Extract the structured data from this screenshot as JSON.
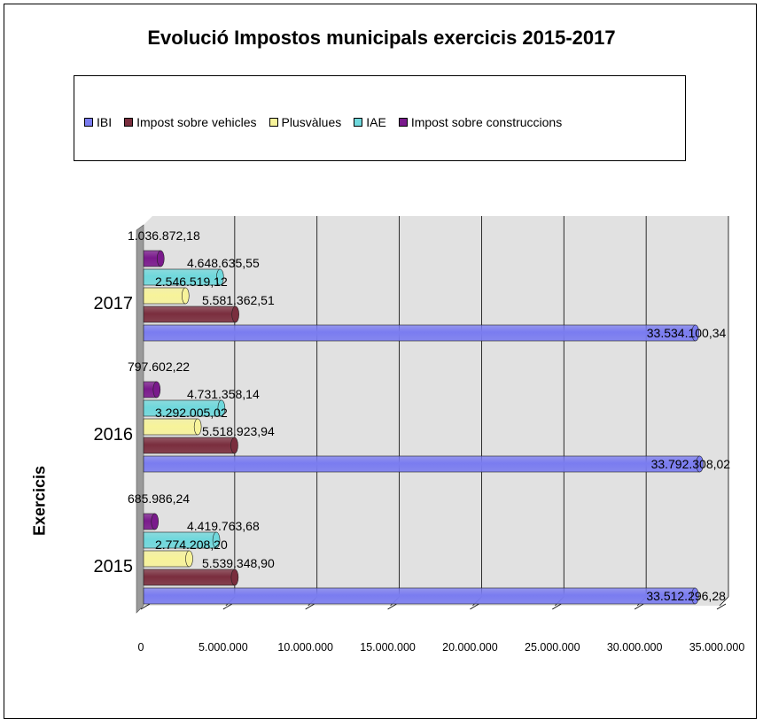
{
  "chart_data": {
    "type": "bar",
    "orientation": "horizontal",
    "title": "Evolució Impostos municipals exercicis 2015-2017",
    "ylabel": "Exercicis",
    "xlabel": "",
    "categories": [
      "2015",
      "2016",
      "2017"
    ],
    "series": [
      {
        "name": "IBI",
        "color": "#7a7cf0",
        "values": [
          33512296.28,
          33792308.02,
          33534100.34
        ],
        "labels": [
          "33.512.296,28",
          "33.792.308,02",
          "33.534.100,34"
        ]
      },
      {
        "name": "Impost sobre vehicles",
        "color": "#7a2e3e",
        "values": [
          5539348.9,
          5518923.94,
          5581362.51
        ],
        "labels": [
          "5.539.348,90",
          "5.518.923,94",
          "5.581.362,51"
        ]
      },
      {
        "name": "Plusvàlues",
        "color": "#f7f39a",
        "values": [
          2774208.2,
          3292005.02,
          2546519.12
        ],
        "labels": [
          "2.774.208,20",
          "3.292.005,02",
          "2.546.519,12"
        ]
      },
      {
        "name": "IAE",
        "color": "#6fd8dc",
        "values": [
          4419763.68,
          4731358.14,
          4648635.55
        ],
        "labels": [
          "4.419.763,68",
          "4.731.358,14",
          "4.648.635,55"
        ]
      },
      {
        "name": "Impost sobre construccions",
        "color": "#7a1a8c",
        "values": [
          685986.24,
          797602.22,
          1036872.18
        ],
        "labels": [
          "685.986,24",
          "797.602,22",
          "1.036.872,18"
        ]
      }
    ],
    "xlim": [
      0,
      35000000
    ],
    "xticks": [
      0,
      5000000,
      10000000,
      15000000,
      20000000,
      25000000,
      30000000,
      35000000
    ],
    "xtick_labels": [
      "0",
      "5.000.000",
      "10.000.000",
      "15.000.000",
      "20.000.000",
      "25.000.000",
      "30.000.000",
      "35.000.000"
    ],
    "grid": true,
    "legend_position": "top"
  }
}
